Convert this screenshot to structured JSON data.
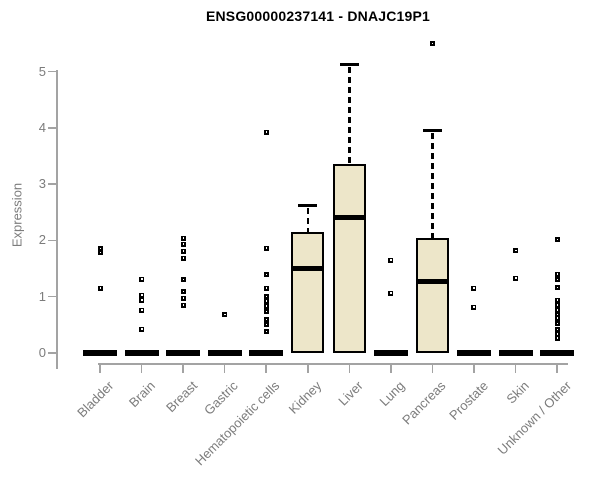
{
  "colors": {
    "box_fill": "#EDE6C9",
    "box_stroke": "#000000",
    "median": "#000000",
    "point": "#000000",
    "axis_line": "#A3A3A3",
    "tick_text": "#7C7C7C",
    "title_text": "#000000",
    "background": "#FFFFFF"
  },
  "chart_data": {
    "type": "boxplot",
    "title": "ENSG00000237141 - DNAJC19P1",
    "ylabel": "Expression",
    "xlabel": "",
    "ylim": [
      0,
      5.6
    ],
    "yticks": [
      0,
      1,
      2,
      3,
      4,
      5
    ],
    "grid": false,
    "legend": false,
    "categories": [
      "Bladder",
      "Brain",
      "Breast",
      "Gastric",
      "Hematopoietic cells",
      "Kidney",
      "Liver",
      "Lung",
      "Pancreas",
      "Prostate",
      "Skin",
      "Unknown / Other"
    ],
    "boxes": [
      {
        "category": "Bladder",
        "collapsed": true,
        "q1": 0,
        "median": 0,
        "q3": 0,
        "whisker_low": 0,
        "whisker_high": 0,
        "points": [
          1.85,
          1.78,
          1.15
        ]
      },
      {
        "category": "Brain",
        "collapsed": true,
        "q1": 0,
        "median": 0,
        "q3": 0,
        "whisker_low": 0,
        "whisker_high": 0,
        "points": [
          1.31,
          1.03,
          0.94,
          0.76,
          0.42
        ]
      },
      {
        "category": "Breast",
        "collapsed": true,
        "q1": 0,
        "median": 0,
        "q3": 0,
        "whisker_low": 0,
        "whisker_high": 0,
        "points": [
          2.04,
          1.93,
          1.81,
          1.68,
          1.3,
          1.09,
          0.97,
          0.85
        ]
      },
      {
        "category": "Gastric",
        "collapsed": true,
        "q1": 0,
        "median": 0,
        "q3": 0,
        "whisker_low": 0,
        "whisker_high": 0,
        "points": [
          0.68
        ]
      },
      {
        "category": "Hematopoietic cells",
        "collapsed": true,
        "q1": 0,
        "median": 0,
        "q3": 0,
        "whisker_low": 0,
        "whisker_high": 0,
        "points": [
          3.92,
          1.86,
          1.39,
          1.15,
          1.0,
          0.92,
          0.83,
          0.73,
          0.59,
          0.5,
          0.38
        ]
      },
      {
        "category": "Kidney",
        "collapsed": false,
        "q1": 0,
        "median": 1.5,
        "q3": 2.15,
        "whisker_low": 0,
        "whisker_high": 2.62,
        "points": []
      },
      {
        "category": "Liver",
        "collapsed": false,
        "q1": 0,
        "median": 2.4,
        "q3": 3.36,
        "whisker_low": 0,
        "whisker_high": 5.12,
        "points": []
      },
      {
        "category": "Lung",
        "collapsed": true,
        "q1": 0,
        "median": 0,
        "q3": 0,
        "whisker_low": 0,
        "whisker_high": 0,
        "points": [
          1.65,
          1.06
        ]
      },
      {
        "category": "Pancreas",
        "collapsed": false,
        "q1": 0,
        "median": 1.27,
        "q3": 2.05,
        "whisker_low": 0,
        "whisker_high": 3.95,
        "points": [
          5.5
        ]
      },
      {
        "category": "Prostate",
        "collapsed": true,
        "q1": 0,
        "median": 0,
        "q3": 0,
        "whisker_low": 0,
        "whisker_high": 0,
        "points": [
          1.15,
          0.81
        ]
      },
      {
        "category": "Skin",
        "collapsed": true,
        "q1": 0,
        "median": 0,
        "q3": 0,
        "whisker_low": 0,
        "whisker_high": 0,
        "points": [
          1.82,
          1.33
        ]
      },
      {
        "category": "Unknown / Other",
        "collapsed": true,
        "q1": 0,
        "median": 0,
        "q3": 0,
        "whisker_low": 0,
        "whisker_high": 0,
        "points": [
          2.01,
          1.4,
          1.3,
          1.16,
          0.94,
          0.85,
          0.76,
          0.68,
          0.62,
          0.52,
          0.41,
          0.33,
          0.26
        ]
      }
    ]
  }
}
